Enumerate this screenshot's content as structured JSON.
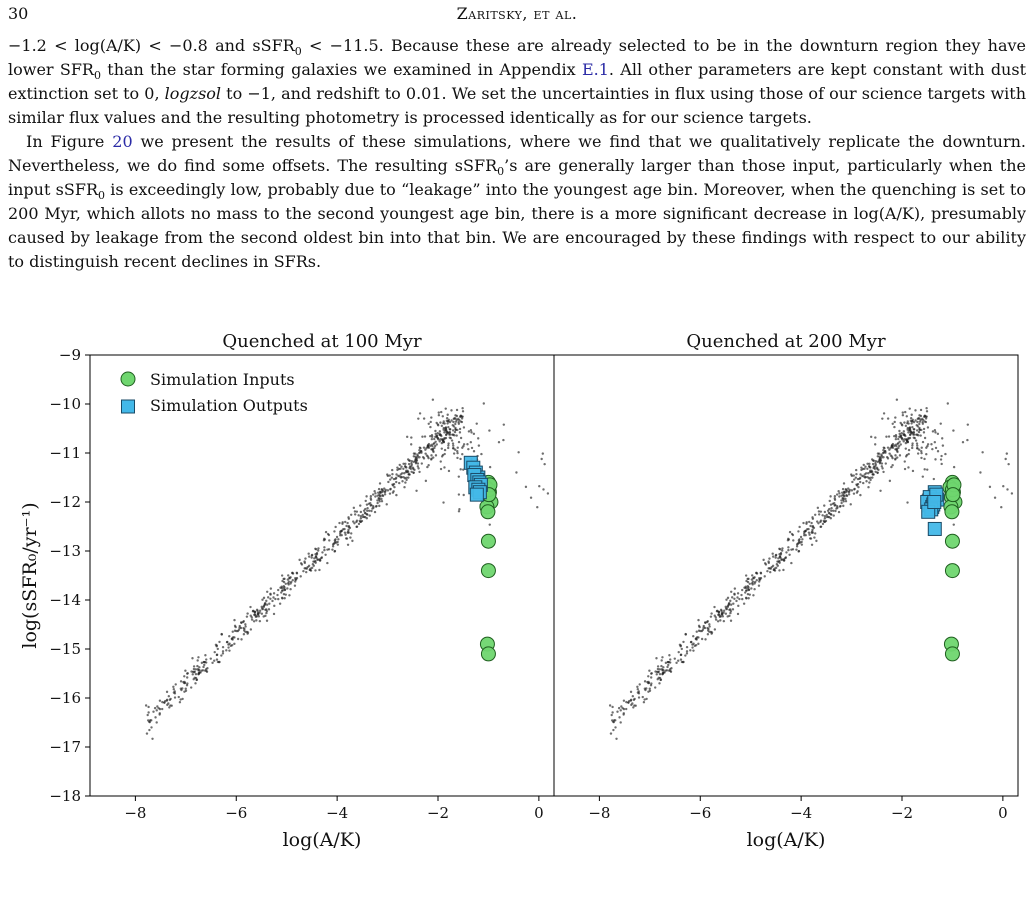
{
  "header": {
    "page_number": "30",
    "running_head": "Zaritsky, et al."
  },
  "paragraphs": [
    {
      "segments": [
        {
          "t": "−1.2 < log(A/K) < −0.8 and sSFR"
        },
        {
          "t": "0",
          "sub": true
        },
        {
          "t": " < −11.5. Because these are already selected to be in the downturn region they have lower SFR"
        },
        {
          "t": "0",
          "sub": true
        },
        {
          "t": " than the star forming galaxies we examined in Appendix "
        },
        {
          "t": "E.1",
          "link": true
        },
        {
          "t": ". All other parameters are kept constant with dust extinction set to 0, "
        },
        {
          "t": "logzsol",
          "em": true
        },
        {
          "t": " to −1, and redshift to 0.01. We set the uncertainties in flux using those of our science targets with similar flux values and the resulting photometry is processed identically as for our science targets."
        }
      ]
    },
    {
      "segments": [
        {
          "t": "In Figure "
        },
        {
          "t": "20",
          "link": true
        },
        {
          "t": " we present the results of these simulations, where we find that we qualitatively replicate the downturn. Nevertheless, we do find some offsets. The resulting sSFR"
        },
        {
          "t": "0",
          "sub": true
        },
        {
          "t": "’s are generally larger than those input, particularly when the input sSFR"
        },
        {
          "t": "0",
          "sub": true
        },
        {
          "t": " is exceedingly low, probably due to “leakage” into the youngest age bin. Moreover, when the quenching is set to 200 Myr, which allots no mass to the second youngest age bin, there is a more significant decrease in log(A/K), presumably caused by leakage from the second oldest bin into that bin. We are encouraged by these findings with respect to our ability to distinguish recent declines in SFRs."
        }
      ]
    }
  ],
  "figure": {
    "ylabel": "log(sSFR₀/yr⁻¹)",
    "legend": {
      "inputs": "Simulation Inputs",
      "outputs": "Simulation Outputs"
    },
    "colors": {
      "inputs": "#6fd66f",
      "outputs": "#43b8e8",
      "background_points": "#222222"
    }
  },
  "chart_data": [
    {
      "type": "scatter",
      "title": "Quenched at 100 Myr",
      "xlabel": "log(A/K)",
      "ylabel": "log(sSFR₀/yr⁻¹)",
      "xlim": [
        -8.9,
        0.3
      ],
      "ylim": [
        -18,
        -9
      ],
      "xticks": [
        -8,
        -6,
        -4,
        -2,
        0
      ],
      "yticks": [
        -18,
        -17,
        -16,
        -15,
        -14,
        -13,
        -12,
        -11,
        -10,
        -9
      ],
      "xtick_labels": [
        "−8",
        "−6",
        "−4",
        "−2",
        "0"
      ],
      "ytick_labels": [
        "−18",
        "−17",
        "−16",
        "−15",
        "−14",
        "−13",
        "−12",
        "−11",
        "−10",
        "−9"
      ],
      "legend_position": "top-left",
      "series": [
        {
          "name": "Simulation Inputs",
          "marker": "circle",
          "x": [
            -1.0,
            -1.05,
            -0.98,
            -1.02,
            -0.95,
            -1.0,
            -1.03,
            -0.97,
            -1.01,
            -0.99,
            -1.0,
            -1.0,
            -1.02,
            -1.0
          ],
          "y": [
            -11.6,
            -11.7,
            -11.8,
            -11.9,
            -12.0,
            -11.75,
            -12.1,
            -11.65,
            -12.2,
            -11.85,
            -12.8,
            -13.4,
            -14.9,
            -15.1
          ]
        },
        {
          "name": "Simulation Outputs",
          "marker": "square",
          "x": [
            -1.35,
            -1.3,
            -1.25,
            -1.2,
            -1.28,
            -1.22,
            -1.18,
            -1.15,
            -1.26,
            -1.2,
            -1.17,
            -1.23
          ],
          "y": [
            -11.2,
            -11.3,
            -11.4,
            -11.5,
            -11.45,
            -11.55,
            -11.6,
            -11.65,
            -11.7,
            -11.75,
            -11.8,
            -11.85
          ]
        }
      ]
    },
    {
      "type": "scatter",
      "title": "Quenched at 200 Myr",
      "xlabel": "log(A/K)",
      "xlim": [
        -8.9,
        0.3
      ],
      "ylim": [
        -18,
        -9
      ],
      "xticks": [
        -8,
        -6,
        -4,
        -2,
        0
      ],
      "xtick_labels": [
        "−8",
        "−6",
        "−4",
        "−2",
        "0"
      ],
      "series": [
        {
          "name": "Simulation Inputs",
          "marker": "circle",
          "x": [
            -1.0,
            -1.05,
            -0.98,
            -1.02,
            -0.95,
            -1.0,
            -1.03,
            -0.97,
            -1.01,
            -0.99,
            -1.0,
            -1.0,
            -1.02,
            -1.0
          ],
          "y": [
            -11.6,
            -11.7,
            -11.8,
            -11.9,
            -12.0,
            -11.75,
            -12.1,
            -11.65,
            -12.2,
            -11.85,
            -12.8,
            -13.4,
            -14.9,
            -15.1
          ]
        },
        {
          "name": "Simulation Outputs",
          "marker": "square",
          "x": [
            -1.35,
            -1.45,
            -1.5,
            -1.4,
            -1.3,
            -1.38,
            -1.42,
            -1.32,
            -1.48,
            -1.36,
            -1.35
          ],
          "y": [
            -11.8,
            -11.9,
            -12.0,
            -12.1,
            -11.95,
            -12.05,
            -12.15,
            -11.85,
            -12.2,
            -12.0,
            -12.55
          ]
        }
      ]
    }
  ]
}
